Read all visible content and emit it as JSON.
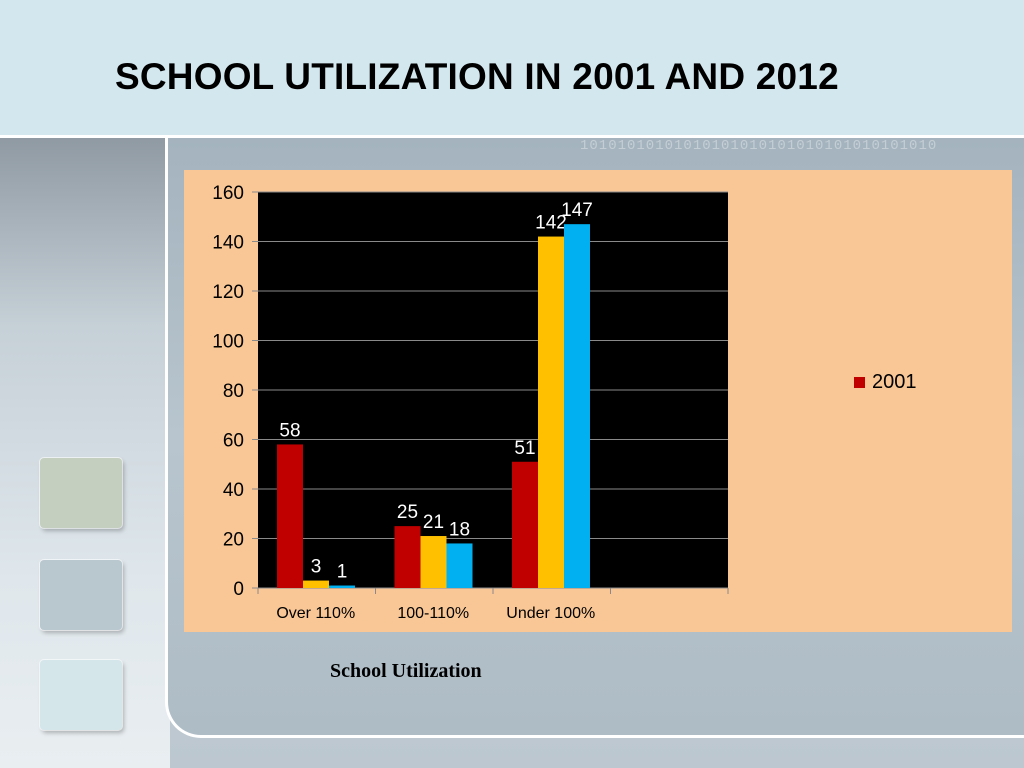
{
  "slide": {
    "title": "SCHOOL UTILIZATION IN 2001 AND 2012",
    "caption": "School Utilization",
    "background_digits": "10101010101010101010101010101010101010",
    "swatch_colors": [
      "#c5cfc0",
      "#b9c7cf",
      "#d5e6ea"
    ]
  },
  "chart_data": {
    "type": "bar",
    "categories": [
      "Over 110%",
      "100-110%",
      "Under 100%"
    ],
    "series": [
      {
        "name": "2001",
        "values": [
          58,
          25,
          51
        ],
        "color": "#c00000"
      },
      {
        "values": [
          3,
          21,
          142
        ],
        "color": "#ffc000"
      },
      {
        "values": [
          1,
          18,
          147
        ],
        "color": "#00b0f0"
      }
    ],
    "ylim": [
      0,
      160
    ],
    "yticks": [
      0,
      20,
      40,
      60,
      80,
      100,
      120,
      140,
      160
    ],
    "grid": true,
    "legend_position": "right",
    "plot_background": "#000000",
    "chart_background": "#f9c795",
    "title": "",
    "xlabel": "",
    "ylabel": ""
  }
}
